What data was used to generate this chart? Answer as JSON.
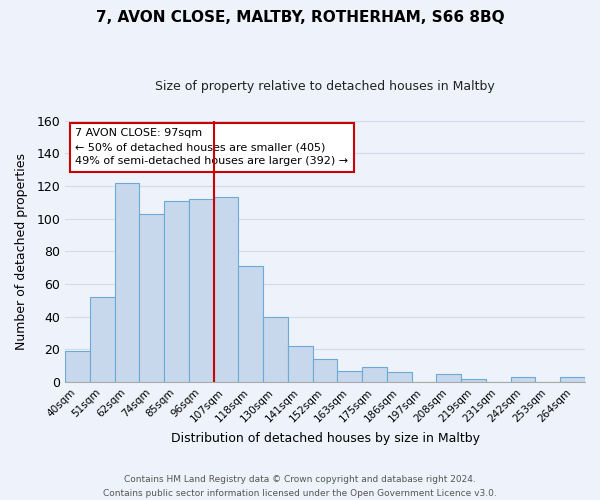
{
  "title": "7, AVON CLOSE, MALTBY, ROTHERHAM, S66 8BQ",
  "subtitle": "Size of property relative to detached houses in Maltby",
  "xlabel": "Distribution of detached houses by size in Maltby",
  "ylabel": "Number of detached properties",
  "categories": [
    "40sqm",
    "51sqm",
    "62sqm",
    "74sqm",
    "85sqm",
    "96sqm",
    "107sqm",
    "118sqm",
    "130sqm",
    "141sqm",
    "152sqm",
    "163sqm",
    "175sqm",
    "186sqm",
    "197sqm",
    "208sqm",
    "219sqm",
    "231sqm",
    "242sqm",
    "253sqm",
    "264sqm"
  ],
  "values": [
    19,
    52,
    122,
    103,
    111,
    112,
    113,
    71,
    40,
    22,
    14,
    7,
    9,
    6,
    0,
    5,
    2,
    0,
    3,
    0,
    3
  ],
  "bar_color": "#c8d8ec",
  "bar_edge_color": "#6aaad4",
  "vline_color": "#cc0000",
  "annotation_title": "7 AVON CLOSE: 97sqm",
  "annotation_line1": "← 50% of detached houses are smaller (405)",
  "annotation_line2": "49% of semi-detached houses are larger (392) →",
  "annotation_box_edge": "#cc0000",
  "ylim": [
    0,
    160
  ],
  "yticks": [
    0,
    20,
    40,
    60,
    80,
    100,
    120,
    140,
    160
  ],
  "footer1": "Contains HM Land Registry data © Crown copyright and database right 2024.",
  "footer2": "Contains public sector information licensed under the Open Government Licence v3.0.",
  "grid_color": "#d0daea",
  "background_color": "#eef2fa"
}
